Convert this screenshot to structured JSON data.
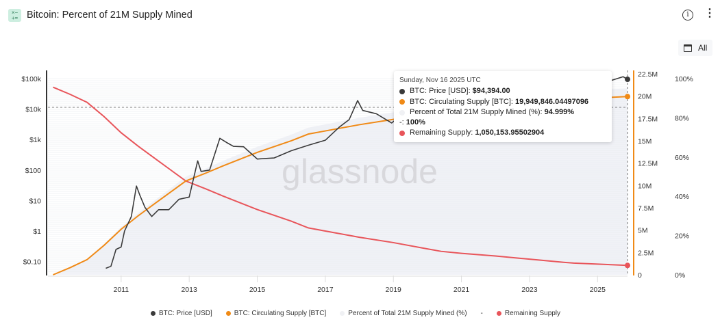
{
  "header": {
    "title": "Bitcoin: Percent of 21M Supply Mined",
    "icon": "calculator-icon",
    "range_label": "All"
  },
  "colors": {
    "price": "#3a3a3a",
    "supply": "#f08a16",
    "percent": "#eef0f5",
    "remaining": "#e8555a"
  },
  "watermark": "glassnode",
  "tooltip": {
    "date": "Sunday, Nov 16 2025 UTC",
    "rows": [
      {
        "label": "BTC: Price [USD]:",
        "value": "$94,394.00",
        "color": "#3a3a3a"
      },
      {
        "label": "BTC: Circulating Supply [BTC]:",
        "value": "19,949,846.04497096",
        "color": "#f08a16"
      },
      {
        "label": "Percent of Total 21M Supply Mined (%):",
        "value": "94.999%",
        "color": "#f0f1f4"
      },
      {
        "label": "-:",
        "value": "100%",
        "color": ""
      },
      {
        "label": "Remaining Supply:",
        "value": "1,050,153.95502904",
        "color": "#e8555a"
      }
    ]
  },
  "chart_data": {
    "type": "line",
    "title": "Bitcoin: Percent of 21M Supply Mined",
    "x_ticks": [
      "2011",
      "2013",
      "2015",
      "2017",
      "2019",
      "2021",
      "2023",
      "2025"
    ],
    "xlim": [
      2008.85,
      2025.88
    ],
    "y_left": {
      "scale": "log",
      "ticks": [
        "$0.10",
        "$1",
        "$10",
        "$100",
        "$1k",
        "$10k",
        "$100k"
      ],
      "tick_values": [
        0.1,
        1,
        10,
        100,
        1000,
        10000,
        100000
      ],
      "range": [
        0.035,
        185000
      ]
    },
    "y_right_supply": {
      "ticks": [
        "0",
        "2.5M",
        "5M",
        "7.5M",
        "10M",
        "12.5M",
        "15M",
        "17.5M",
        "20M",
        "22.5M"
      ],
      "range": [
        0,
        23
      ]
    },
    "y_right_percent": {
      "ticks": [
        "0%",
        "20%",
        "40%",
        "60%",
        "80%",
        "100%"
      ],
      "range": [
        0,
        100
      ]
    },
    "grid": false,
    "legend_placement": "bottom",
    "legend": [
      "BTC: Price [USD]",
      "BTC: Circulating Supply [BTC]",
      "Percent of Total 21M Supply Mined (%)",
      "-",
      "Remaining Supply"
    ],
    "series": [
      {
        "name": "BTC: Price [USD]",
        "axis": "left",
        "points": [
          [
            2010.55,
            0.06
          ],
          [
            2010.7,
            0.07
          ],
          [
            2010.85,
            0.25
          ],
          [
            2011.0,
            0.3
          ],
          [
            2011.1,
            1
          ],
          [
            2011.3,
            3
          ],
          [
            2011.45,
            30
          ],
          [
            2011.55,
            15
          ],
          [
            2011.7,
            6
          ],
          [
            2011.9,
            3
          ],
          [
            2012.1,
            5
          ],
          [
            2012.4,
            5
          ],
          [
            2012.7,
            11
          ],
          [
            2013.0,
            13
          ],
          [
            2013.25,
            200
          ],
          [
            2013.35,
            90
          ],
          [
            2013.6,
            100
          ],
          [
            2013.9,
            1100
          ],
          [
            2014.1,
            800
          ],
          [
            2014.3,
            600
          ],
          [
            2014.6,
            580
          ],
          [
            2015.0,
            230
          ],
          [
            2015.5,
            250
          ],
          [
            2016.0,
            430
          ],
          [
            2016.5,
            650
          ],
          [
            2017.0,
            950
          ],
          [
            2017.4,
            2500
          ],
          [
            2017.7,
            4500
          ],
          [
            2017.95,
            19000
          ],
          [
            2018.1,
            9000
          ],
          [
            2018.5,
            7000
          ],
          [
            2018.95,
            3500
          ],
          [
            2019.5,
            11000
          ],
          [
            2020.2,
            5000
          ],
          [
            2020.6,
            11000
          ],
          [
            2020.9,
            19000
          ],
          [
            2021.3,
            60000
          ],
          [
            2021.55,
            32000
          ],
          [
            2021.85,
            67000
          ],
          [
            2022.5,
            20000
          ],
          [
            2022.9,
            16500
          ],
          [
            2023.5,
            30000
          ],
          [
            2023.9,
            42000
          ],
          [
            2024.2,
            70000
          ],
          [
            2024.6,
            58000
          ],
          [
            2024.95,
            100000
          ],
          [
            2025.3,
            80000
          ],
          [
            2025.75,
            115000
          ],
          [
            2025.88,
            94394
          ]
        ]
      },
      {
        "name": "BTC: Circulating Supply [BTC]",
        "axis": "supply",
        "points": [
          [
            2009.0,
            0
          ],
          [
            2009.5,
            0.8
          ],
          [
            2010.0,
            1.7
          ],
          [
            2010.5,
            3.3
          ],
          [
            2011.0,
            5.1
          ],
          [
            2011.5,
            6.6
          ],
          [
            2012.0,
            8.0
          ],
          [
            2012.9,
            10.5
          ],
          [
            2013.5,
            11.4
          ],
          [
            2014.0,
            12.2
          ],
          [
            2015.0,
            13.7
          ],
          [
            2016.0,
            15.0
          ],
          [
            2016.5,
            15.75
          ],
          [
            2017.0,
            16.1
          ],
          [
            2018.0,
            16.8
          ],
          [
            2019.0,
            17.4
          ],
          [
            2020.0,
            18.1
          ],
          [
            2020.4,
            18.375
          ],
          [
            2021.0,
            18.6
          ],
          [
            2022.0,
            18.9
          ],
          [
            2023.0,
            19.25
          ],
          [
            2024.0,
            19.6
          ],
          [
            2024.3,
            19.69
          ],
          [
            2025.0,
            19.8
          ],
          [
            2025.88,
            19.95
          ]
        ]
      },
      {
        "name": "Percent of Total 21M Supply Mined (%)",
        "axis": "percent",
        "derived": "supply/21M"
      },
      {
        "name": "-",
        "axis": "percent",
        "value": 100
      },
      {
        "name": "Remaining Supply",
        "axis": "supply",
        "derived": "21M - supply"
      }
    ]
  }
}
